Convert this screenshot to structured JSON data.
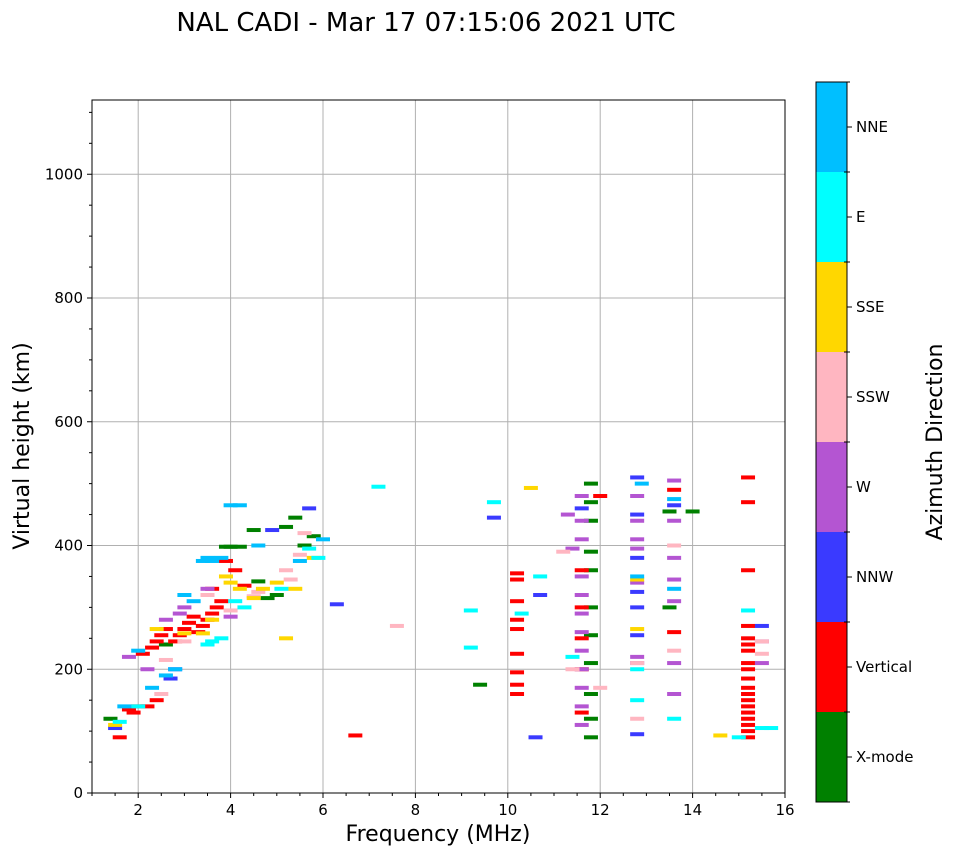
{
  "chart_data": {
    "type": "scatter",
    "title": "NAL CADI - Mar 17 07:15:06 2021 UTC",
    "xlabel": "Frequency (MHz)",
    "ylabel": "Virtual height (km)",
    "xlim": [
      1,
      16
    ],
    "ylim": [
      0,
      1120
    ],
    "xticks": [
      2,
      4,
      6,
      8,
      10,
      12,
      14,
      16
    ],
    "yticks": [
      0,
      200,
      400,
      600,
      800,
      1000
    ],
    "grid": true,
    "colorbar": {
      "title": "Azimuth Direction",
      "categories": [
        {
          "name": "X-mode",
          "color": "#008000"
        },
        {
          "name": "Vertical",
          "color": "#ff0000"
        },
        {
          "name": "NNW",
          "color": "#3a3aff"
        },
        {
          "name": "W",
          "color": "#b455d2"
        },
        {
          "name": "SSW",
          "color": "#ffb6c1"
        },
        {
          "name": "SSE",
          "color": "#ffd700"
        },
        {
          "name": "E",
          "color": "#00ffff"
        },
        {
          "name": "NNE",
          "color": "#00bfff"
        }
      ]
    },
    "series": [
      {
        "name": "X-mode",
        "points": [
          [
            1.4,
            120
          ],
          [
            2.6,
            240
          ],
          [
            3.9,
            398
          ],
          [
            4.0,
            398
          ],
          [
            4.2,
            398
          ],
          [
            4.5,
            425
          ],
          [
            4.6,
            342
          ],
          [
            4.8,
            315
          ],
          [
            5.0,
            320
          ],
          [
            5.2,
            430
          ],
          [
            5.4,
            445
          ],
          [
            5.6,
            400
          ],
          [
            5.8,
            415
          ],
          [
            9.4,
            175
          ],
          [
            11.8,
            500
          ],
          [
            11.8,
            470
          ],
          [
            11.8,
            440
          ],
          [
            11.8,
            390
          ],
          [
            11.8,
            360
          ],
          [
            11.8,
            300
          ],
          [
            11.8,
            255
          ],
          [
            11.8,
            210
          ],
          [
            11.8,
            160
          ],
          [
            11.8,
            120
          ],
          [
            11.8,
            90
          ],
          [
            13.5,
            300
          ],
          [
            13.5,
            455
          ],
          [
            14.0,
            455
          ]
        ]
      },
      {
        "name": "Vertical",
        "points": [
          [
            1.6,
            90
          ],
          [
            1.8,
            135
          ],
          [
            1.9,
            130
          ],
          [
            2.0,
            140
          ],
          [
            2.2,
            140
          ],
          [
            2.4,
            150
          ],
          [
            2.1,
            225
          ],
          [
            2.3,
            235
          ],
          [
            2.4,
            245
          ],
          [
            2.5,
            255
          ],
          [
            2.6,
            265
          ],
          [
            2.8,
            245
          ],
          [
            2.9,
            255
          ],
          [
            3.0,
            265
          ],
          [
            3.1,
            275
          ],
          [
            3.2,
            285
          ],
          [
            3.3,
            260
          ],
          [
            3.4,
            270
          ],
          [
            3.5,
            280
          ],
          [
            3.6,
            290
          ],
          [
            3.7,
            300
          ],
          [
            3.8,
            310
          ],
          [
            3.6,
            330
          ],
          [
            3.9,
            375
          ],
          [
            4.1,
            360
          ],
          [
            4.3,
            335
          ],
          [
            6.7,
            93
          ],
          [
            10.2,
            355
          ],
          [
            10.2,
            345
          ],
          [
            10.2,
            310
          ],
          [
            10.2,
            280
          ],
          [
            10.2,
            265
          ],
          [
            10.2,
            225
          ],
          [
            10.2,
            195
          ],
          [
            10.2,
            175
          ],
          [
            10.2,
            160
          ],
          [
            11.6,
            360
          ],
          [
            11.6,
            300
          ],
          [
            11.6,
            250
          ],
          [
            11.6,
            200
          ],
          [
            11.6,
            130
          ],
          [
            12.0,
            480
          ],
          [
            13.6,
            490
          ],
          [
            13.6,
            260
          ],
          [
            15.2,
            510
          ],
          [
            15.2,
            470
          ],
          [
            15.2,
            360
          ],
          [
            15.2,
            270
          ],
          [
            15.2,
            250
          ],
          [
            15.2,
            240
          ],
          [
            15.2,
            230
          ],
          [
            15.2,
            210
          ],
          [
            15.2,
            200
          ],
          [
            15.2,
            185
          ],
          [
            15.2,
            170
          ],
          [
            15.2,
            160
          ],
          [
            15.2,
            150
          ],
          [
            15.2,
            140
          ],
          [
            15.2,
            130
          ],
          [
            15.2,
            120
          ],
          [
            15.2,
            110
          ],
          [
            15.2,
            100
          ],
          [
            15.2,
            90
          ]
        ]
      },
      {
        "name": "NNW",
        "points": [
          [
            1.5,
            105
          ],
          [
            2.7,
            185
          ],
          [
            2.8,
            200
          ],
          [
            4.9,
            425
          ],
          [
            5.7,
            460
          ],
          [
            6.3,
            305
          ],
          [
            9.7,
            445
          ],
          [
            10.6,
            90
          ],
          [
            10.7,
            320
          ],
          [
            11.6,
            460
          ],
          [
            12.8,
            95
          ],
          [
            12.8,
            510
          ],
          [
            12.8,
            450
          ],
          [
            12.8,
            380
          ],
          [
            12.8,
            325
          ],
          [
            12.8,
            300
          ],
          [
            12.8,
            255
          ],
          [
            13.6,
            465
          ],
          [
            15.5,
            270
          ]
        ]
      },
      {
        "name": "W",
        "points": [
          [
            1.8,
            220
          ],
          [
            2.2,
            200
          ],
          [
            2.6,
            280
          ],
          [
            2.9,
            290
          ],
          [
            3.0,
            300
          ],
          [
            3.5,
            330
          ],
          [
            4.0,
            285
          ],
          [
            11.3,
            450
          ],
          [
            11.4,
            395
          ],
          [
            11.6,
            480
          ],
          [
            11.6,
            440
          ],
          [
            11.6,
            410
          ],
          [
            11.6,
            350
          ],
          [
            11.6,
            320
          ],
          [
            11.6,
            290
          ],
          [
            11.6,
            260
          ],
          [
            11.6,
            230
          ],
          [
            11.6,
            200
          ],
          [
            11.6,
            170
          ],
          [
            11.6,
            140
          ],
          [
            11.6,
            110
          ],
          [
            12.8,
            480
          ],
          [
            12.8,
            440
          ],
          [
            12.8,
            410
          ],
          [
            12.8,
            395
          ],
          [
            12.8,
            340
          ],
          [
            12.8,
            220
          ],
          [
            12.8,
            210
          ],
          [
            13.6,
            505
          ],
          [
            13.6,
            440
          ],
          [
            13.6,
            380
          ],
          [
            13.6,
            345
          ],
          [
            13.6,
            310
          ],
          [
            13.6,
            210
          ],
          [
            13.6,
            160
          ],
          [
            15.5,
            210
          ],
          [
            15.5,
            245
          ]
        ]
      },
      {
        "name": "SSW",
        "points": [
          [
            2.5,
            160
          ],
          [
            2.6,
            215
          ],
          [
            3.0,
            245
          ],
          [
            3.5,
            320
          ],
          [
            4.0,
            295
          ],
          [
            4.5,
            318
          ],
          [
            4.6,
            325
          ],
          [
            5.2,
            360
          ],
          [
            5.5,
            385
          ],
          [
            5.6,
            420
          ],
          [
            5.3,
            345
          ],
          [
            7.6,
            270
          ],
          [
            11.2,
            390
          ],
          [
            11.4,
            200
          ],
          [
            12.0,
            170
          ],
          [
            12.8,
            120
          ],
          [
            12.8,
            210
          ],
          [
            13.6,
            400
          ],
          [
            13.6,
            230
          ],
          [
            15.5,
            245
          ],
          [
            15.5,
            225
          ]
        ]
      },
      {
        "name": "SSE",
        "points": [
          [
            1.5,
            110
          ],
          [
            2.4,
            265
          ],
          [
            3.0,
            258
          ],
          [
            3.4,
            258
          ],
          [
            3.6,
            280
          ],
          [
            3.9,
            350
          ],
          [
            4.0,
            340
          ],
          [
            4.2,
            330
          ],
          [
            4.5,
            315
          ],
          [
            4.7,
            330
          ],
          [
            5.0,
            340
          ],
          [
            5.2,
            250
          ],
          [
            5.4,
            330
          ],
          [
            5.8,
            380
          ],
          [
            10.5,
            493
          ],
          [
            12.8,
            265
          ],
          [
            12.8,
            345
          ],
          [
            14.6,
            93
          ]
        ]
      },
      {
        "name": "E",
        "points": [
          [
            1.6,
            115
          ],
          [
            2.0,
            140
          ],
          [
            3.5,
            240
          ],
          [
            3.6,
            245
          ],
          [
            3.8,
            250
          ],
          [
            4.1,
            310
          ],
          [
            4.3,
            300
          ],
          [
            5.1,
            330
          ],
          [
            5.7,
            395
          ],
          [
            5.9,
            380
          ],
          [
            7.2,
            495
          ],
          [
            9.2,
            235
          ],
          [
            9.2,
            295
          ],
          [
            9.7,
            470
          ],
          [
            10.3,
            290
          ],
          [
            10.7,
            350
          ],
          [
            11.4,
            220
          ],
          [
            12.8,
            200
          ],
          [
            12.8,
            150
          ],
          [
            13.6,
            120
          ],
          [
            15.0,
            90
          ],
          [
            15.2,
            295
          ],
          [
            15.5,
            105
          ],
          [
            15.7,
            105
          ]
        ]
      },
      {
        "name": "NNE",
        "points": [
          [
            1.7,
            140
          ],
          [
            2.0,
            230
          ],
          [
            2.3,
            170
          ],
          [
            2.6,
            190
          ],
          [
            2.8,
            200
          ],
          [
            3.0,
            320
          ],
          [
            3.2,
            310
          ],
          [
            3.4,
            375
          ],
          [
            3.5,
            380
          ],
          [
            3.6,
            375
          ],
          [
            3.8,
            380
          ],
          [
            4.0,
            465
          ],
          [
            4.2,
            465
          ],
          [
            4.6,
            400
          ],
          [
            5.5,
            375
          ],
          [
            6.0,
            410
          ],
          [
            12.9,
            500
          ],
          [
            12.8,
            350
          ],
          [
            13.6,
            330
          ],
          [
            13.6,
            475
          ]
        ]
      }
    ]
  }
}
